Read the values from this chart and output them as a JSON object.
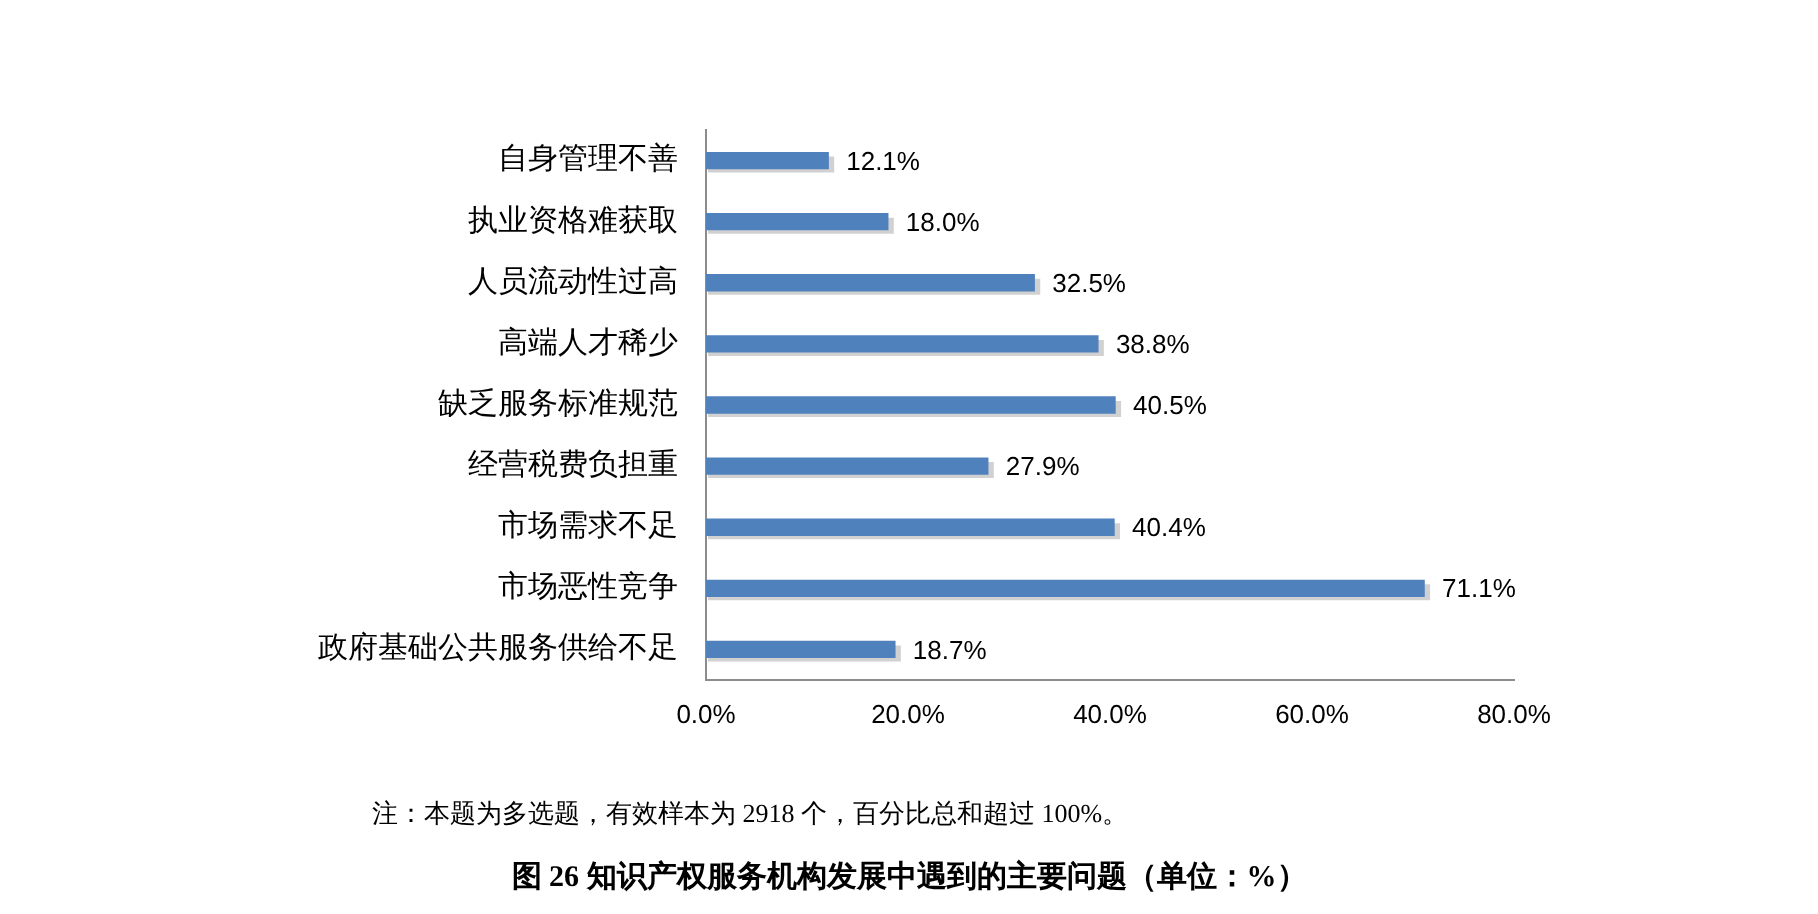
{
  "chart_data": {
    "type": "bar",
    "orientation": "horizontal",
    "title": "图 26 知识产权服务机构发展中遇到的主要问题（单位：%）",
    "annotations": [
      "注：本题为多选题，有效样本为 2918 个，百分比总和超过 100%。"
    ],
    "categories": [
      "自身管理不善",
      "执业资格难获取",
      "人员流动性过高",
      "高端人才稀少",
      "缺乏服务标准规范",
      "经营税费负担重",
      "市场需求不足",
      "市场恶性竞争",
      "政府基础公共服务供给不足"
    ],
    "values": [
      12.1,
      18.0,
      32.5,
      38.8,
      40.5,
      27.9,
      40.4,
      71.1,
      18.7
    ],
    "value_labels": [
      "12.1%",
      "18.0%",
      "32.5%",
      "38.8%",
      "40.5%",
      "27.9%",
      "40.4%",
      "71.1%",
      "18.7%"
    ],
    "color": "#4f81bd",
    "xlim": [
      0,
      80
    ],
    "xticks": [
      {
        "value": 0,
        "label": "0.0%"
      },
      {
        "value": 20,
        "label": "20.0%"
      },
      {
        "value": 40,
        "label": "40.0%"
      },
      {
        "value": 60,
        "label": "60.0%"
      },
      {
        "value": 80,
        "label": "80.0%"
      }
    ],
    "grid": false,
    "legend": false
  }
}
